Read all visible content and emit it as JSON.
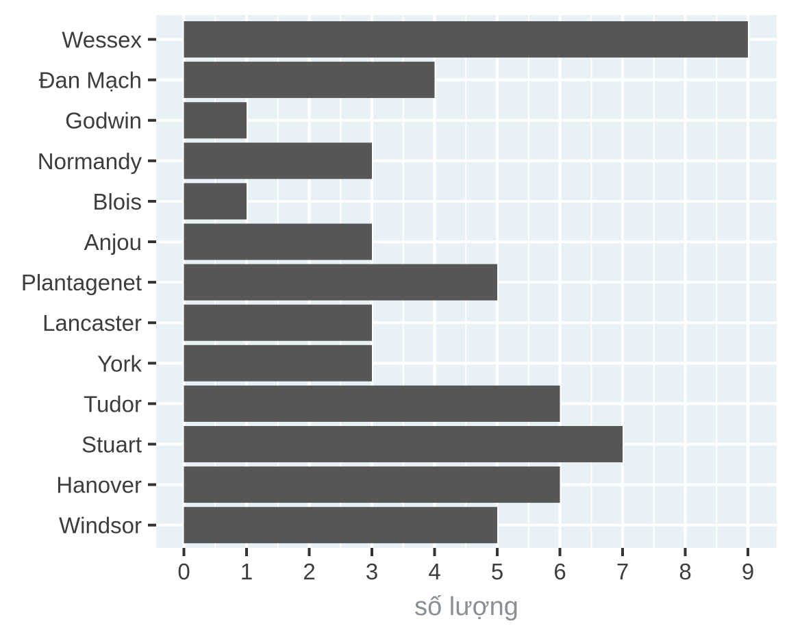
{
  "chart_data": {
    "type": "bar",
    "orientation": "horizontal",
    "categories": [
      "Wessex",
      "Đan Mạch",
      "Godwin",
      "Normandy",
      "Blois",
      "Anjou",
      "Plantagenet",
      "Lancaster",
      "York",
      "Tudor",
      "Stuart",
      "Hanover",
      "Windsor"
    ],
    "values": [
      9,
      4,
      1,
      3,
      1,
      3,
      5,
      3,
      3,
      6,
      7,
      6,
      5
    ],
    "title": "",
    "xlabel": "số lượng",
    "ylabel": "",
    "xlim": [
      0,
      9
    ],
    "x_ticks": [
      "0",
      "1",
      "2",
      "3",
      "4",
      "5",
      "6",
      "7",
      "8",
      "9"
    ],
    "grid": true,
    "colors": {
      "bar": "#575757",
      "panel_background": "#e8f1f5",
      "grid": "#ffffff",
      "tick_label": "#3d3d3d",
      "axis_title": "#8a8f96"
    }
  }
}
